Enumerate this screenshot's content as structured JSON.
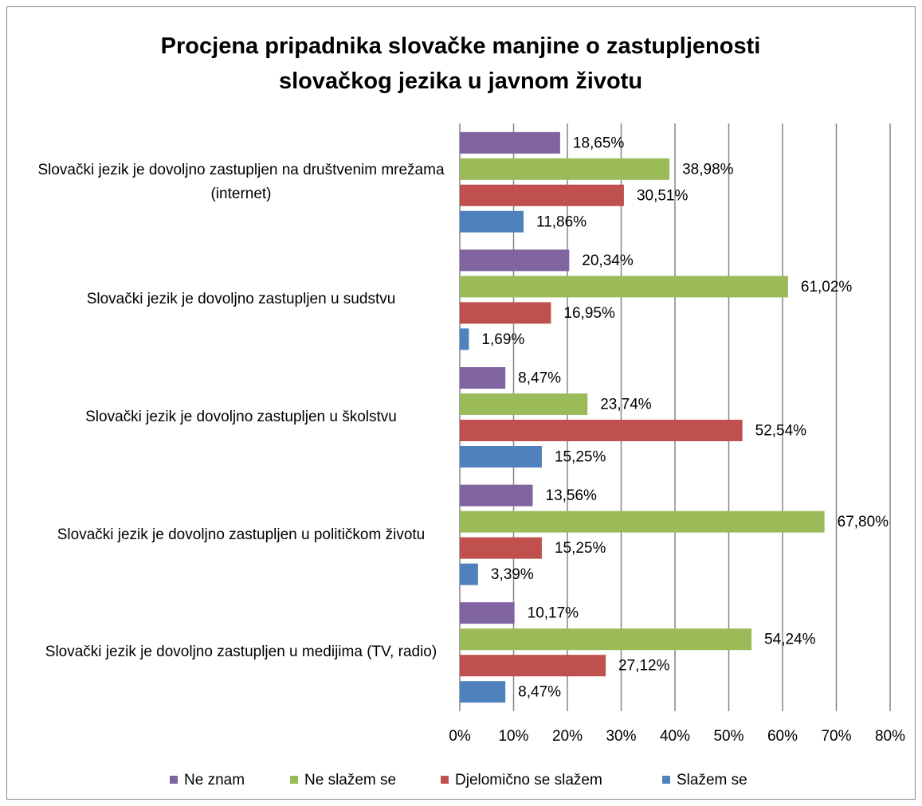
{
  "chart_data": {
    "type": "hbar",
    "title": "Procjena pripadnika slovačke manjine o zastupljenosti slovačkog jezika u javnom životu",
    "categories": [
      "Slovački jezik je dovoljno zastupljen na društvenim mrežama (internet)",
      "Slovački jezik je dovoljno zastupljen u sudstvu",
      "Slovački jezik je dovoljno zastupljen u školstvu",
      "Slovački jezik je dovoljno zastupljen u političkom životu",
      "Slovački jezik je dovoljno zastupljen u medijima (TV, radio)"
    ],
    "series": [
      {
        "name": "Ne znam",
        "color": "#8064a2",
        "values": [
          18.65,
          20.34,
          8.47,
          13.56,
          10.17
        ],
        "value_labels": [
          "18,65%",
          "20,34%",
          "8,47%",
          "13,56%",
          "10,17%"
        ]
      },
      {
        "name": "Ne slažem se",
        "color": "#9bbb59",
        "values": [
          38.98,
          61.02,
          23.74,
          67.8,
          54.24
        ],
        "value_labels": [
          "38,98%",
          "61,02%",
          "23,74%",
          "67,80%",
          "54,24%"
        ]
      },
      {
        "name": "Djelomično se slažem",
        "color": "#c0504d",
        "values": [
          30.51,
          16.95,
          52.54,
          15.25,
          27.12
        ],
        "value_labels": [
          "30,51%",
          "16,95%",
          "52,54%",
          "15,25%",
          "27,12%"
        ]
      },
      {
        "name": "Slažem se",
        "color": "#4f81bd",
        "values": [
          11.86,
          1.69,
          15.25,
          3.39,
          8.47
        ],
        "value_labels": [
          "11,86%",
          "1,69%",
          "15,25%",
          "3,39%",
          "8,47%"
        ]
      }
    ],
    "xlim": [
      0,
      80
    ],
    "xticks": [
      {
        "value": 0,
        "label": "0%"
      },
      {
        "value": 10,
        "label": "10%"
      },
      {
        "value": 20,
        "label": "20%"
      },
      {
        "value": 30,
        "label": "30%"
      },
      {
        "value": 40,
        "label": "40%"
      },
      {
        "value": 50,
        "label": "50%"
      },
      {
        "value": 60,
        "label": "60%"
      },
      {
        "value": 70,
        "label": "70%"
      },
      {
        "value": 80,
        "label": "80%"
      }
    ],
    "grid": true,
    "legend": "bottom"
  }
}
